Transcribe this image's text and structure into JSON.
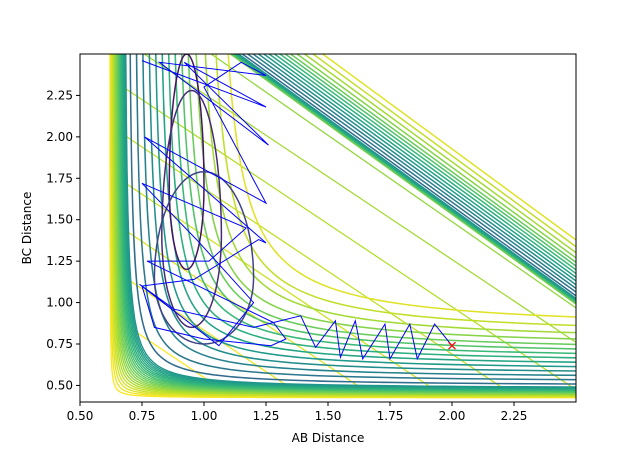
{
  "chart_data": {
    "type": "line",
    "title": "",
    "xlabel": "AB Distance",
    "ylabel": "BC Distance",
    "xlim": [
      0.5,
      2.5
    ],
    "ylim": [
      0.4,
      2.5
    ],
    "xticks": [
      "0.50",
      "0.75",
      "1.00",
      "1.25",
      "1.50",
      "1.75",
      "2.00",
      "2.25"
    ],
    "yticks": [
      "0.50",
      "0.75",
      "1.00",
      "1.25",
      "1.50",
      "1.75",
      "2.00",
      "2.25"
    ],
    "grid": false,
    "legend": "none",
    "contour_colormap": "viridis",
    "series": [
      {
        "kind": "trajectory",
        "color": "#0000ff",
        "points": [
          [
            2.0,
            0.74
          ],
          [
            1.93,
            0.87
          ],
          [
            1.86,
            0.66
          ],
          [
            1.83,
            0.87
          ],
          [
            1.75,
            0.66
          ],
          [
            1.73,
            0.87
          ],
          [
            1.64,
            0.66
          ],
          [
            1.61,
            0.89
          ],
          [
            1.55,
            0.67
          ],
          [
            1.53,
            0.89
          ],
          [
            1.45,
            0.73
          ],
          [
            1.39,
            0.92
          ],
          [
            1.2,
            0.85
          ],
          [
            0.88,
            0.96
          ],
          [
            0.74,
            1.11
          ],
          [
            1.06,
            0.74
          ],
          [
            1.2,
            1.0
          ],
          [
            0.97,
            1.38
          ],
          [
            0.75,
            1.72
          ],
          [
            1.17,
            1.45
          ],
          [
            1.02,
            1.25
          ],
          [
            0.77,
            1.25
          ],
          [
            1.28,
            0.88
          ],
          [
            1.33,
            0.78
          ],
          [
            1.27,
            0.74
          ],
          [
            1.0,
            0.78
          ],
          [
            0.8,
            0.85
          ],
          [
            0.75,
            1.1
          ],
          [
            0.96,
            1.14
          ],
          [
            1.22,
            1.38
          ],
          [
            1.25,
            1.36
          ],
          [
            0.76,
            2.0
          ],
          [
            1.25,
            1.6
          ],
          [
            1.0,
            2.3
          ],
          [
            1.15,
            2.45
          ],
          [
            1.25,
            2.37
          ],
          [
            0.82,
            2.45
          ],
          [
            1.26,
            1.95
          ],
          [
            0.92,
            2.45
          ],
          [
            1.25,
            2.18
          ],
          [
            0.75,
            2.46
          ]
        ]
      },
      {
        "kind": "start-point",
        "marker": "x",
        "color": "#ff0000",
        "points": [
          [
            2.0,
            0.74
          ]
        ]
      }
    ]
  }
}
